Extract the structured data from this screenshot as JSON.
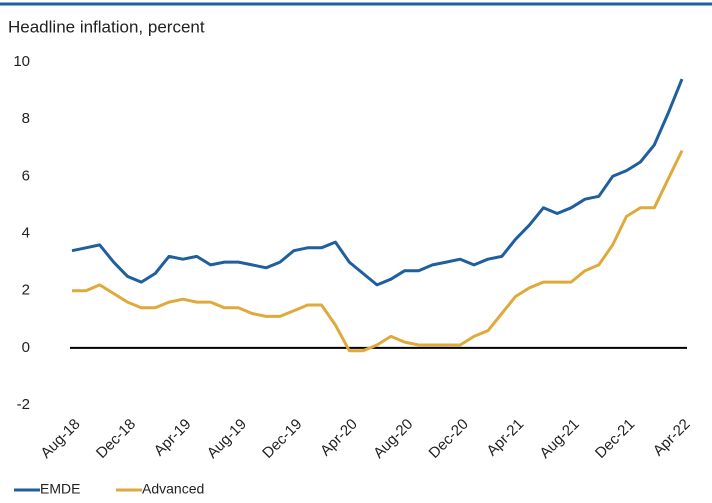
{
  "chart_data": {
    "type": "line",
    "title": "Headline inflation, percent",
    "categories": [
      "Aug-18",
      null,
      null,
      null,
      "Dec-18",
      null,
      null,
      null,
      "Apr-19",
      null,
      null,
      null,
      "Aug-19",
      null,
      null,
      null,
      "Dec-19",
      null,
      null,
      null,
      "Apr-20",
      null,
      null,
      null,
      "Aug-20",
      null,
      null,
      null,
      "Dec-20",
      null,
      null,
      null,
      "Apr-21",
      null,
      null,
      null,
      "Aug-21",
      null,
      null,
      null,
      "Dec-21",
      null,
      null,
      null,
      "Apr-22"
    ],
    "series": [
      {
        "name": "EMDE",
        "color": "#1f5f9e",
        "values": [
          3.4,
          3.5,
          3.6,
          3.0,
          2.5,
          2.3,
          2.6,
          3.2,
          3.1,
          3.2,
          2.9,
          3.0,
          3.0,
          2.9,
          2.8,
          3.0,
          3.4,
          3.5,
          3.5,
          3.7,
          3.0,
          2.6,
          2.2,
          2.4,
          2.7,
          2.7,
          2.9,
          3.0,
          3.1,
          2.9,
          3.1,
          3.2,
          3.8,
          4.3,
          4.9,
          4.7,
          4.9,
          5.2,
          5.3,
          6.0,
          6.2,
          6.5,
          7.1,
          8.2,
          9.4
        ]
      },
      {
        "name": "Advanced",
        "color": "#e0a93c",
        "values": [
          2.0,
          2.0,
          2.2,
          1.9,
          1.6,
          1.4,
          1.4,
          1.6,
          1.7,
          1.6,
          1.6,
          1.4,
          1.4,
          1.2,
          1.1,
          1.1,
          1.3,
          1.5,
          1.5,
          0.8,
          -0.1,
          -0.1,
          0.1,
          0.4,
          0.2,
          0.1,
          0.1,
          0.1,
          0.1,
          0.4,
          0.6,
          1.2,
          1.8,
          2.1,
          2.3,
          2.3,
          2.3,
          2.7,
          2.9,
          3.6,
          4.6,
          4.9,
          4.9,
          5.9,
          6.9
        ]
      }
    ],
    "ylim": [
      -2,
      10
    ],
    "yticks": [
      -2,
      0,
      2,
      4,
      6,
      8,
      10
    ],
    "grid": false
  }
}
